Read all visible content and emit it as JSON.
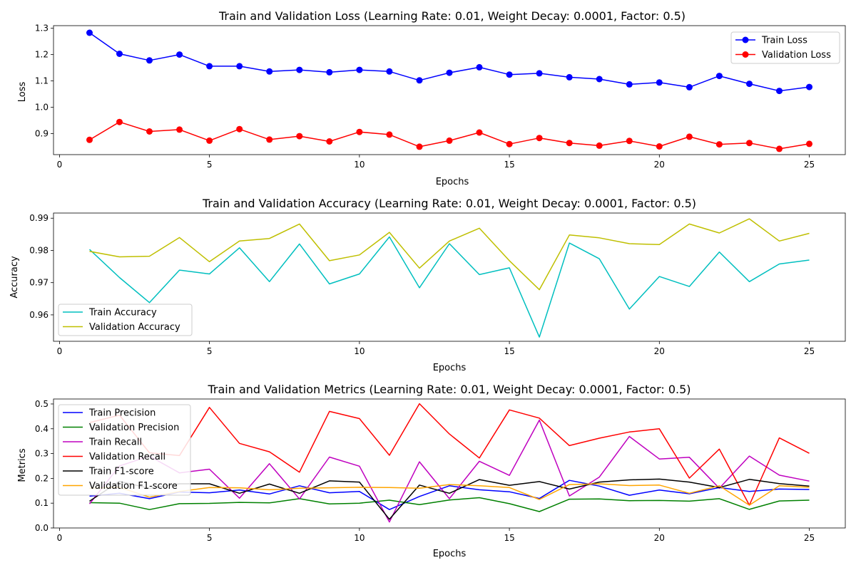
{
  "chart_data": [
    {
      "type": "line",
      "title": "Train and Validation Loss (Learning Rate: 0.01, Weight Decay: 0.0001, Factor: 0.5)",
      "xlabel": "Epochs",
      "ylabel": "Loss",
      "xlim": [
        -0.2,
        26.2
      ],
      "ylim": [
        0.82,
        1.31
      ],
      "xticks": [
        0,
        5,
        10,
        15,
        20,
        25
      ],
      "xtick_labels": [
        "0",
        "5",
        "10",
        "15",
        "20",
        "25"
      ],
      "yticks": [
        0.9,
        1.0,
        1.1,
        1.2,
        1.3
      ],
      "ytick_labels": [
        "0.9",
        "1.0",
        "1.1",
        "1.2",
        "1.3"
      ],
      "grid": false,
      "legend": "upper right",
      "x": [
        1,
        2,
        3,
        4,
        5,
        6,
        7,
        8,
        9,
        10,
        11,
        12,
        13,
        14,
        15,
        16,
        17,
        18,
        19,
        20,
        21,
        22,
        23,
        24,
        25
      ],
      "series": [
        {
          "name": "Train Loss",
          "color": "#0000ff",
          "marker": "circle",
          "values": [
            1.283,
            1.203,
            1.178,
            1.2,
            1.156,
            1.156,
            1.136,
            1.142,
            1.133,
            1.142,
            1.136,
            1.102,
            1.131,
            1.152,
            1.124,
            1.129,
            1.114,
            1.107,
            1.087,
            1.094,
            1.076,
            1.119,
            1.089,
            1.062,
            1.077
          ]
        },
        {
          "name": "Validation Loss",
          "color": "#ff0000",
          "marker": "circle",
          "values": [
            0.876,
            0.944,
            0.908,
            0.915,
            0.873,
            0.917,
            0.877,
            0.89,
            0.87,
            0.906,
            0.896,
            0.85,
            0.873,
            0.904,
            0.86,
            0.883,
            0.864,
            0.854,
            0.872,
            0.851,
            0.888,
            0.859,
            0.864,
            0.842,
            0.861
          ]
        }
      ]
    },
    {
      "type": "line",
      "title": "Train and Validation Accuracy (Learning Rate: 0.01, Weight Decay: 0.0001, Factor: 0.5)",
      "xlabel": "Epochs",
      "ylabel": "Accuracy",
      "xlim": [
        -0.2,
        26.2
      ],
      "ylim": [
        0.9518,
        0.9916
      ],
      "xticks": [
        0,
        5,
        10,
        15,
        20,
        25
      ],
      "xtick_labels": [
        "0",
        "5",
        "10",
        "15",
        "20",
        "25"
      ],
      "yticks": [
        0.96,
        0.97,
        0.98,
        0.99
      ],
      "ytick_labels": [
        "0.96",
        "0.97",
        "0.98",
        "0.99"
      ],
      "grid": false,
      "legend": "lower left",
      "x": [
        1,
        2,
        3,
        4,
        5,
        6,
        7,
        8,
        9,
        10,
        11,
        12,
        13,
        14,
        15,
        16,
        17,
        18,
        19,
        20,
        21,
        22,
        23,
        24,
        25
      ],
      "series": [
        {
          "name": "Train Accuracy",
          "color": "#00bfbf",
          "marker": "none",
          "values": [
            0.9803,
            0.9716,
            0.9638,
            0.9739,
            0.9727,
            0.9808,
            0.9703,
            0.982,
            0.9696,
            0.9727,
            0.9842,
            0.9684,
            0.9821,
            0.9725,
            0.9746,
            0.9531,
            0.9823,
            0.9774,
            0.9618,
            0.9719,
            0.9688,
            0.9795,
            0.9703,
            0.9758,
            0.977
          ]
        },
        {
          "name": "Validation Accuracy",
          "color": "#bfbf00",
          "marker": "none",
          "values": [
            0.9797,
            0.978,
            0.9782,
            0.984,
            0.9765,
            0.9829,
            0.9837,
            0.9882,
            0.9768,
            0.9786,
            0.9856,
            0.9745,
            0.9829,
            0.9869,
            0.9768,
            0.9678,
            0.9848,
            0.9839,
            0.9821,
            0.9818,
            0.9882,
            0.9854,
            0.9898,
            0.9829,
            0.9853
          ]
        }
      ]
    },
    {
      "type": "line",
      "title": "Train and Validation Metrics (Learning Rate: 0.01, Weight Decay: 0.0001, Factor: 0.5)",
      "xlabel": "Epochs",
      "ylabel": "Metrics",
      "xlim": [
        -0.2,
        26.2
      ],
      "ylim": [
        0.0,
        0.52
      ],
      "xticks": [
        0,
        5,
        10,
        15,
        20,
        25
      ],
      "xtick_labels": [
        "0",
        "5",
        "10",
        "15",
        "20",
        "25"
      ],
      "yticks": [
        0.0,
        0.1,
        0.2,
        0.3,
        0.4,
        0.5
      ],
      "ytick_labels": [
        "0.0",
        "0.1",
        "0.2",
        "0.3",
        "0.4",
        "0.5"
      ],
      "grid": false,
      "legend": "upper left",
      "x": [
        1,
        2,
        3,
        4,
        5,
        6,
        7,
        8,
        9,
        10,
        11,
        12,
        13,
        14,
        15,
        16,
        17,
        18,
        19,
        20,
        21,
        22,
        23,
        24,
        25
      ],
      "series": [
        {
          "name": "Train Precision",
          "color": "#0000ff",
          "marker": "none",
          "values": [
            0.128,
            0.14,
            0.118,
            0.145,
            0.142,
            0.153,
            0.137,
            0.17,
            0.142,
            0.147,
            0.074,
            0.127,
            0.17,
            0.154,
            0.146,
            0.119,
            0.192,
            0.169,
            0.132,
            0.153,
            0.138,
            0.163,
            0.147,
            0.157,
            0.155
          ]
        },
        {
          "name": "Validation Precision",
          "color": "#008000",
          "marker": "none",
          "values": [
            0.102,
            0.1,
            0.074,
            0.098,
            0.099,
            0.103,
            0.101,
            0.118,
            0.097,
            0.1,
            0.112,
            0.094,
            0.113,
            0.122,
            0.098,
            0.066,
            0.116,
            0.117,
            0.11,
            0.111,
            0.108,
            0.118,
            0.075,
            0.109,
            0.112
          ]
        },
        {
          "name": "Train Recall",
          "color": "#bf00bf",
          "marker": "none",
          "values": [
            0.097,
            0.25,
            0.29,
            0.222,
            0.237,
            0.12,
            0.259,
            0.117,
            0.286,
            0.249,
            0.024,
            0.267,
            0.118,
            0.269,
            0.212,
            0.435,
            0.129,
            0.205,
            0.369,
            0.278,
            0.285,
            0.16,
            0.29,
            0.213,
            0.189
          ]
        },
        {
          "name": "Validation Recall",
          "color": "#ff0000",
          "marker": "none",
          "values": [
            0.425,
            0.455,
            0.303,
            0.292,
            0.486,
            0.341,
            0.307,
            0.225,
            0.47,
            0.441,
            0.293,
            0.501,
            0.379,
            0.282,
            0.476,
            0.443,
            0.332,
            0.362,
            0.387,
            0.4,
            0.201,
            0.318,
            0.092,
            0.363,
            0.301
          ]
        },
        {
          "name": "Train F1-score",
          "color": "#000000",
          "marker": "none",
          "values": [
            0.108,
            0.188,
            0.16,
            0.178,
            0.178,
            0.14,
            0.177,
            0.14,
            0.19,
            0.185,
            0.035,
            0.173,
            0.14,
            0.195,
            0.172,
            0.187,
            0.157,
            0.185,
            0.194,
            0.197,
            0.185,
            0.163,
            0.196,
            0.179,
            0.169
          ]
        },
        {
          "name": "Validation F1-score",
          "color": "#ffa500",
          "marker": "none",
          "values": [
            0.16,
            0.164,
            0.124,
            0.147,
            0.163,
            0.162,
            0.154,
            0.16,
            0.162,
            0.164,
            0.163,
            0.16,
            0.175,
            0.17,
            0.163,
            0.115,
            0.175,
            0.178,
            0.171,
            0.173,
            0.14,
            0.17,
            0.092,
            0.17,
            0.164
          ]
        }
      ]
    }
  ]
}
